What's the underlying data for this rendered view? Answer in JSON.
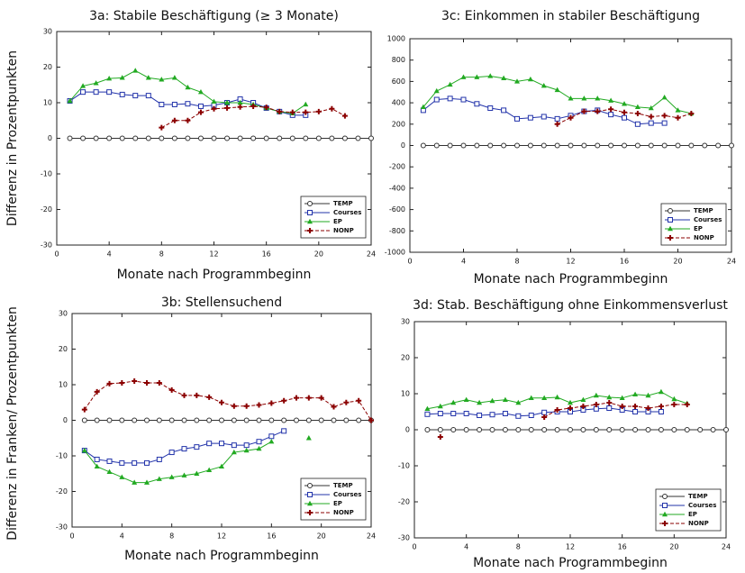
{
  "chart_data": [
    {
      "type": "line",
      "title": "3a: Stabile Beschäftigung (≥ 3 Monate)",
      "xlabel": "Monate nach Programmbeginn",
      "ylabel": "Differenz in Prozentpunkten",
      "x": [
        1,
        2,
        3,
        4,
        5,
        6,
        7,
        8,
        9,
        10,
        11,
        12,
        13,
        14,
        15,
        16,
        17,
        18,
        19,
        20,
        21,
        22,
        23,
        24
      ],
      "xlim": [
        0,
        24
      ],
      "xticks": [
        0,
        4,
        8,
        12,
        16,
        20,
        24
      ],
      "ylim": [
        -30,
        30
      ],
      "yticks": [
        -30,
        -20,
        -10,
        0,
        10,
        20,
        30
      ],
      "legend": "lower right",
      "series": [
        {
          "name": "TEMP",
          "color": "#333333",
          "marker": "circle",
          "values": [
            0,
            0,
            0,
            0,
            0,
            0,
            0,
            0,
            0,
            0,
            0,
            0,
            0,
            0,
            0,
            0,
            0,
            0,
            0,
            0,
            0,
            0,
            0,
            0
          ]
        },
        {
          "name": "Courses",
          "color": "#2233aa",
          "marker": "square",
          "values": [
            10.5,
            13,
            13,
            13,
            12.3,
            12,
            12,
            9.5,
            9.5,
            9.7,
            9,
            9.3,
            10,
            11,
            10,
            8.5,
            7.5,
            6.5,
            6.5,
            null,
            null,
            null,
            null,
            null
          ]
        },
        {
          "name": "EP",
          "color": "#22aa22",
          "marker": "triangle",
          "values": [
            10.5,
            14.7,
            15.5,
            16.8,
            17,
            19,
            17,
            16.5,
            17,
            14.3,
            13,
            10.3,
            10,
            10,
            9.5,
            8.5,
            7.5,
            7,
            9.5,
            null,
            null,
            null,
            null,
            null
          ]
        },
        {
          "name": "NONP",
          "color": "#8b0000",
          "marker": "plus",
          "dash": true,
          "values": [
            null,
            null,
            null,
            null,
            null,
            null,
            null,
            3,
            5,
            5,
            7.3,
            8.3,
            8.5,
            8.8,
            9,
            8.7,
            7.5,
            7.3,
            7.3,
            7.5,
            8.3,
            6.3,
            null,
            null
          ]
        }
      ]
    },
    {
      "type": "line",
      "title": "3c: Einkommen in stabiler Beschäftigung",
      "xlabel": "Monate nach Programmbeginn",
      "x": [
        1,
        2,
        3,
        4,
        5,
        6,
        7,
        8,
        9,
        10,
        11,
        12,
        13,
        14,
        15,
        16,
        17,
        18,
        19,
        20,
        21,
        22,
        23,
        24
      ],
      "xlim": [
        0,
        24
      ],
      "xticks": [
        0,
        4,
        8,
        12,
        16,
        20,
        24
      ],
      "ylim": [
        -1000,
        1000
      ],
      "yticks": [
        -1000,
        -800,
        -600,
        -400,
        -200,
        0,
        200,
        400,
        600,
        800,
        1000
      ],
      "legend": "lower right",
      "series": [
        {
          "name": "TEMP",
          "color": "#333333",
          "marker": "circle",
          "values": [
            0,
            0,
            0,
            0,
            0,
            0,
            0,
            0,
            0,
            0,
            0,
            0,
            0,
            0,
            0,
            0,
            0,
            0,
            0,
            0,
            0,
            0,
            0,
            0
          ]
        },
        {
          "name": "Courses",
          "color": "#2233aa",
          "marker": "square",
          "values": [
            330,
            430,
            440,
            430,
            390,
            350,
            330,
            250,
            260,
            270,
            250,
            280,
            320,
            330,
            290,
            260,
            200,
            210,
            210,
            null,
            null,
            null,
            null,
            null
          ]
        },
        {
          "name": "EP",
          "color": "#22aa22",
          "marker": "triangle",
          "values": [
            360,
            510,
            570,
            640,
            640,
            650,
            630,
            600,
            620,
            560,
            520,
            440,
            440,
            440,
            420,
            390,
            360,
            350,
            450,
            330,
            300,
            null,
            null,
            null
          ]
        },
        {
          "name": "NONP",
          "color": "#8b0000",
          "marker": "plus",
          "dash": true,
          "values": [
            null,
            null,
            null,
            null,
            null,
            null,
            null,
            null,
            null,
            null,
            200,
            260,
            320,
            320,
            340,
            310,
            300,
            270,
            280,
            260,
            300,
            null,
            null,
            null
          ]
        }
      ]
    },
    {
      "type": "line",
      "title": "3b: Stellensuchend",
      "xlabel": "Monate nach Programmbeginn",
      "ylabel": "Differenz in Franken/ Prozentpunkten",
      "x": [
        1,
        2,
        3,
        4,
        5,
        6,
        7,
        8,
        9,
        10,
        11,
        12,
        13,
        14,
        15,
        16,
        17,
        18,
        19,
        20,
        21,
        22,
        23,
        24
      ],
      "xlim": [
        0,
        24
      ],
      "xticks": [
        0,
        4,
        8,
        12,
        16,
        20,
        24
      ],
      "ylim": [
        -30,
        30
      ],
      "yticks": [
        -30,
        -20,
        -10,
        0,
        10,
        20,
        30
      ],
      "legend": "lower right",
      "series": [
        {
          "name": "TEMP",
          "color": "#333333",
          "marker": "circle",
          "values": [
            0,
            0,
            0,
            0,
            0,
            0,
            0,
            0,
            0,
            0,
            0,
            0,
            0,
            0,
            0,
            0,
            0,
            0,
            0,
            0,
            0,
            0,
            0,
            0
          ]
        },
        {
          "name": "Courses",
          "color": "#2233aa",
          "marker": "square",
          "values": [
            -8.5,
            -11,
            -11.5,
            -12,
            -12,
            -12,
            -11,
            -9,
            -8,
            -7.5,
            -6.5,
            -6.5,
            -7,
            -7,
            -6,
            -4.5,
            -3,
            null,
            null,
            null,
            null,
            null,
            null,
            null
          ]
        },
        {
          "name": "EP",
          "color": "#22aa22",
          "marker": "triangle",
          "values": [
            -8.5,
            -13,
            -14.5,
            -16,
            -17.5,
            -17.5,
            -16.5,
            -16,
            -15.5,
            -15,
            -14,
            -13,
            -9,
            -8.5,
            -8,
            -6,
            null,
            null,
            -5,
            null,
            null,
            null,
            null,
            null
          ]
        },
        {
          "name": "NONP",
          "color": "#8b0000",
          "marker": "plus",
          "dash": true,
          "values": [
            3,
            8,
            10.3,
            10.5,
            11,
            10.5,
            10.5,
            8.5,
            7,
            7,
            6.5,
            5,
            4,
            4,
            4.3,
            4.8,
            5.5,
            6.3,
            6.3,
            6.3,
            3.8,
            5,
            5.5,
            0
          ]
        }
      ]
    },
    {
      "type": "line",
      "title": "3d: Stab. Beschäftigung ohne Einkommensverlust",
      "xlabel": "Monate nach Programmbeginn",
      "x": [
        1,
        2,
        3,
        4,
        5,
        6,
        7,
        8,
        9,
        10,
        11,
        12,
        13,
        14,
        15,
        16,
        17,
        18,
        19,
        20,
        21,
        22,
        23,
        24
      ],
      "xlim": [
        0,
        24
      ],
      "xticks": [
        0,
        4,
        8,
        12,
        16,
        20,
        24
      ],
      "ylim": [
        -30,
        30
      ],
      "yticks": [
        -30,
        -20,
        -10,
        0,
        10,
        20,
        30
      ],
      "legend": "lower right",
      "series": [
        {
          "name": "TEMP",
          "color": "#333333",
          "marker": "circle",
          "values": [
            0,
            0,
            0,
            0,
            0,
            0,
            0,
            0,
            0,
            0,
            0,
            0,
            0,
            0,
            0,
            0,
            0,
            0,
            0,
            0,
            0,
            0,
            0,
            0
          ]
        },
        {
          "name": "Courses",
          "color": "#2233aa",
          "marker": "square",
          "values": [
            4.3,
            4.5,
            4.5,
            4.5,
            4,
            4.2,
            4.5,
            3.8,
            4,
            4.8,
            5,
            5,
            5.5,
            5.8,
            6,
            5.5,
            5,
            5,
            5,
            null,
            null,
            null,
            null,
            null
          ]
        },
        {
          "name": "EP",
          "color": "#22aa22",
          "marker": "triangle",
          "values": [
            5.8,
            6.5,
            7.5,
            8.3,
            7.5,
            8,
            8.3,
            7.5,
            8.8,
            8.8,
            9,
            7.5,
            8.3,
            9.5,
            9,
            8.8,
            9.8,
            9.5,
            10.5,
            8.5,
            7.3,
            null,
            null,
            null
          ]
        },
        {
          "name": "NONP",
          "color": "#8b0000",
          "marker": "plus",
          "dash": true,
          "values": [
            null,
            -2,
            null,
            null,
            null,
            null,
            null,
            null,
            null,
            3.5,
            5.5,
            6,
            6.5,
            7,
            7.5,
            6.5,
            6.5,
            6,
            6.5,
            7,
            7,
            null,
            null,
            null
          ]
        }
      ]
    }
  ]
}
